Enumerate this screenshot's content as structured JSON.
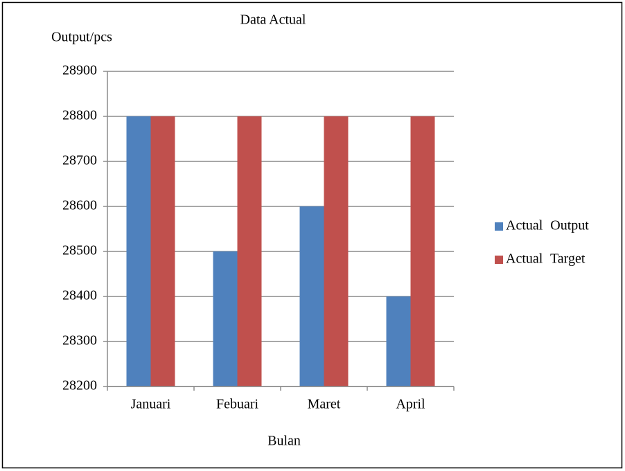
{
  "chart_data": {
    "type": "bar",
    "title": "Data Actual",
    "y_label": "Output/pcs",
    "x_label": "Bulan",
    "categories": [
      "Januari",
      "Febuari",
      "Maret",
      "April"
    ],
    "series": [
      {
        "name": "Actual Output",
        "color": "#4f81bd",
        "values": [
          28800,
          28500,
          28600,
          28400
        ]
      },
      {
        "name": "Actual Target",
        "color": "#c0504d",
        "values": [
          28800,
          28800,
          28800,
          28800
        ]
      }
    ],
    "ylim": [
      28200,
      28900
    ],
    "yticks": [
      28200,
      28300,
      28400,
      28500,
      28600,
      28700,
      28800,
      28900
    ],
    "grid": true,
    "legend": "right"
  }
}
